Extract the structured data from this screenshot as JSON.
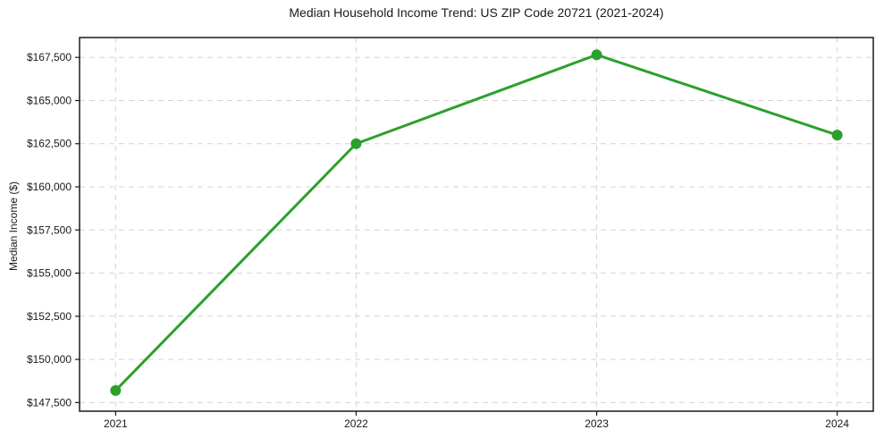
{
  "chart_data": {
    "type": "line",
    "title": "Median Household Income Trend: US ZIP Code 20721 (2021-2024)",
    "xlabel": "",
    "ylabel": "Median Income ($)",
    "x": [
      "2021",
      "2022",
      "2023",
      "2024"
    ],
    "series": [
      {
        "name": "Median Household Income",
        "values": [
          148200,
          162500,
          167650,
          163000
        ],
        "value_labels": [
          "$148,200",
          "$162,500",
          "$167,650",
          "$163,000"
        ]
      }
    ],
    "yticks": [
      {
        "value": 147500,
        "label": "$147,500"
      },
      {
        "value": 150000,
        "label": "$150,000"
      },
      {
        "value": 152500,
        "label": "$152,500"
      },
      {
        "value": 155000,
        "label": "$155,000"
      },
      {
        "value": 157500,
        "label": "$157,500"
      },
      {
        "value": 160000,
        "label": "$160,000"
      },
      {
        "value": 162500,
        "label": "$162,500"
      },
      {
        "value": 165000,
        "label": "$165,000"
      },
      {
        "value": 167500,
        "label": "$167,500"
      }
    ],
    "xticks": [
      "2021",
      "2022",
      "2023",
      "2024"
    ],
    "ylim": [
      147000,
      168650
    ],
    "x_margin_years": 0.15,
    "grid": "dashed-both-axes",
    "legend": "none",
    "colors": {
      "line": "#2ca02c",
      "marker": "#2ca02c",
      "grid": "#d4d4d4",
      "axis": "#1a1a1a",
      "text": "#1a1a1a",
      "background": "#ffffff"
    },
    "marker_shape": "circle"
  }
}
